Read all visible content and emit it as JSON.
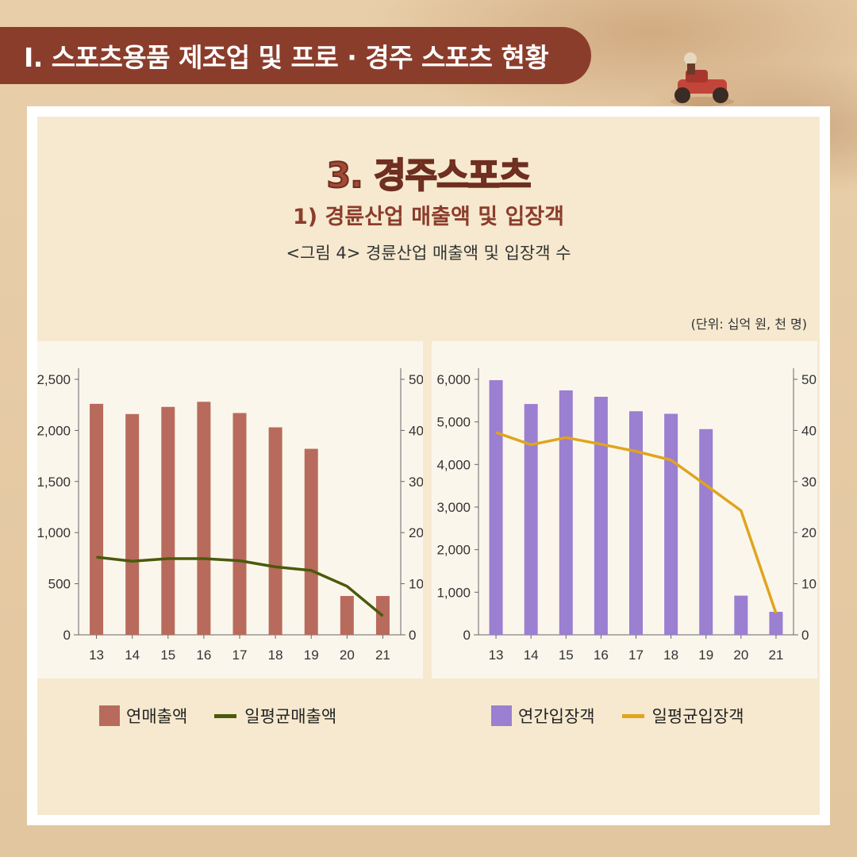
{
  "header": {
    "title": "Ⅰ. 스포츠용품 제조업 및 프로 · 경주 스포츠 현황"
  },
  "content": {
    "title": "3. 경주스포츠",
    "subtitle": "1) 경륜산업 매출액 및 입장객",
    "caption": "<그림 4> 경륜산업 매출액 및 입장객 수",
    "unit": "(단위: 십억 원, 천 명)"
  },
  "colors": {
    "sales_bar": "#b86b5c",
    "sales_line": "#4a5a0a",
    "visitors_bar": "#9b7fd1",
    "visitors_line": "#e0a41e"
  },
  "chart_data": [
    {
      "type": "bar",
      "categories": [
        "13",
        "14",
        "15",
        "16",
        "17",
        "18",
        "19",
        "20",
        "21"
      ],
      "series": [
        {
          "name": "연매출액",
          "axis": "left",
          "values": [
            2260,
            2160,
            2230,
            2280,
            2170,
            2030,
            1820,
            380,
            380
          ]
        },
        {
          "name": "일평균매출액",
          "axis": "right",
          "type": "line",
          "values": [
            15.2,
            14.4,
            14.9,
            14.9,
            14.5,
            13.3,
            12.6,
            9.5,
            3.7
          ]
        }
      ],
      "ylim": [
        0,
        2500
      ],
      "yticks": [
        "0",
        "500",
        "1,000",
        "1,500",
        "2,000",
        "2,500"
      ],
      "y2lim": [
        0,
        50
      ],
      "y2ticks": [
        "0",
        "10",
        "20",
        "30",
        "40",
        "50"
      ],
      "legend_position": "bottom"
    },
    {
      "type": "bar",
      "categories": [
        "13",
        "14",
        "15",
        "16",
        "17",
        "18",
        "19",
        "20",
        "21"
      ],
      "series": [
        {
          "name": "연간입장객",
          "axis": "left",
          "values": [
            5980,
            5420,
            5740,
            5590,
            5250,
            5190,
            4830,
            920,
            540
          ]
        },
        {
          "name": "일평균입장객",
          "axis": "right",
          "type": "line",
          "values": [
            39.6,
            37.2,
            38.6,
            37.3,
            35.9,
            34.2,
            29.3,
            24.3,
            4.2
          ]
        }
      ],
      "ylim": [
        0,
        6000
      ],
      "yticks": [
        "0",
        "1,000",
        "2,000",
        "3,000",
        "4,000",
        "5,000",
        "6,000"
      ],
      "y2lim": [
        0,
        50
      ],
      "y2ticks": [
        "0",
        "10",
        "20",
        "30",
        "40",
        "50"
      ],
      "legend_position": "bottom"
    }
  ]
}
